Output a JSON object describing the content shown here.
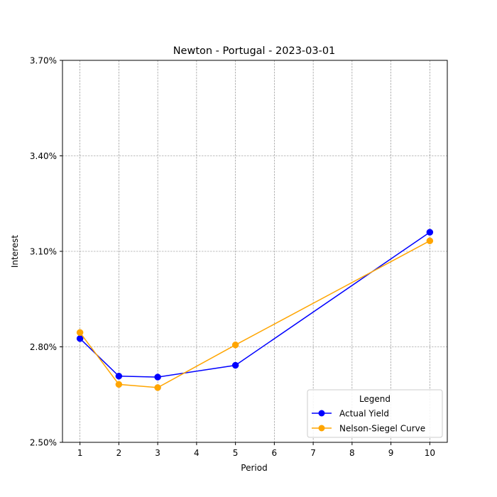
{
  "chart_data": {
    "type": "line",
    "title": "Newton - Portugal - 2023-03-01",
    "xlabel": "Period",
    "ylabel": "Interest",
    "xlim": [
      0.55,
      10.45
    ],
    "ylim": [
      0.025,
      0.037
    ],
    "x_ticks": [
      1,
      2,
      3,
      4,
      5,
      6,
      7,
      8,
      9,
      10
    ],
    "x_tick_labels": [
      "1",
      "2",
      "3",
      "4",
      "5",
      "6",
      "7",
      "8",
      "9",
      "10"
    ],
    "y_ticks": [
      0.025,
      0.028,
      0.031,
      0.034,
      0.037
    ],
    "y_tick_labels": [
      "2.50%",
      "2.80%",
      "3.10%",
      "3.40%",
      "3.70%"
    ],
    "grid": true,
    "legend": {
      "title": "Legend",
      "placement": "lower right"
    },
    "series": [
      {
        "name": "Actual Yield",
        "color": "#0000ff",
        "marker": "circle",
        "x": [
          1,
          2,
          3,
          5,
          10
        ],
        "y": [
          0.02826,
          0.02708,
          0.02705,
          0.02742,
          0.0316
        ]
      },
      {
        "name": "Nelson-Siegel Curve",
        "color": "#ffa500",
        "marker": "circle",
        "x": [
          1,
          2,
          3,
          5,
          10
        ],
        "y": [
          0.02845,
          0.02682,
          0.02672,
          0.02806,
          0.03133
        ]
      }
    ]
  }
}
